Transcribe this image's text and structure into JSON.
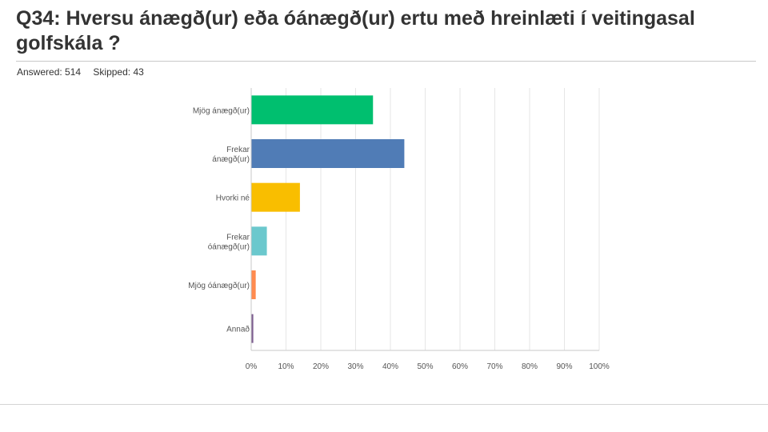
{
  "question": {
    "title": "Q34: Hversu  ánægð(ur) eða óánægð(ur) ertu með hreinlæti í veitingasal golfskála ?",
    "answered": "Answered: 514",
    "skipped": "Skipped: 43"
  },
  "chart_data": {
    "type": "bar",
    "orientation": "horizontal",
    "categories": [
      [
        "Mjög ánægð(ur)"
      ],
      [
        "Frekar",
        "ánægð(ur)"
      ],
      [
        "Hvorki né"
      ],
      [
        "Frekar",
        "óánægð(ur)"
      ],
      [
        "Mjög óánægð(ur)"
      ],
      [
        "Annað"
      ]
    ],
    "values": [
      35,
      44,
      14,
      4.5,
      1.3,
      0.6
    ],
    "colors": [
      "#00bf6f",
      "#507cb6",
      "#f9be00",
      "#6bc8cd",
      "#ff8b4f",
      "#7d5e90"
    ],
    "xlim": [
      0,
      100
    ],
    "xticks": [
      "0%",
      "10%",
      "20%",
      "30%",
      "40%",
      "50%",
      "60%",
      "70%",
      "80%",
      "90%",
      "100%"
    ],
    "grid": true
  }
}
